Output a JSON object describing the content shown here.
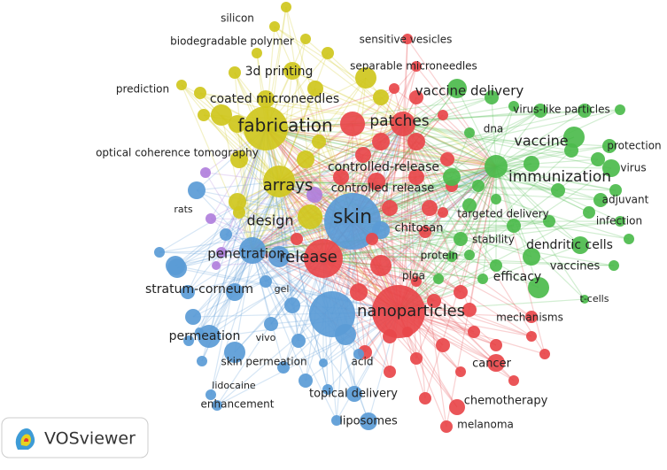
{
  "nodes": [
    {
      "label": "silicon"
    },
    {
      "label": "biodegradable polymer"
    },
    {
      "label": "3d printing"
    },
    {
      "label": "prediction"
    },
    {
      "label": "coated microneedles"
    },
    {
      "label": "fabrication"
    },
    {
      "label": "optical coherence tomography"
    },
    {
      "label": "arrays"
    },
    {
      "label": "design"
    },
    {
      "label": "rats"
    },
    {
      "label": "penetration"
    },
    {
      "label": "stratum-corneum"
    },
    {
      "label": "gel"
    },
    {
      "label": "permeation"
    },
    {
      "label": "vivo"
    },
    {
      "label": "skin permeation"
    },
    {
      "label": "lidocaine"
    },
    {
      "label": "enhancement"
    },
    {
      "label": "topical delivery"
    },
    {
      "label": "liposomes"
    },
    {
      "label": "skin"
    },
    {
      "label": "release"
    },
    {
      "label": "nanoparticles"
    },
    {
      "label": "sensitive vesicles"
    },
    {
      "label": "separable microneedles"
    },
    {
      "label": "patches"
    },
    {
      "label": "controlled-release"
    },
    {
      "label": "controlled release"
    },
    {
      "label": "chitosan"
    },
    {
      "label": "protein"
    },
    {
      "label": "plga"
    },
    {
      "label": "mechanisms"
    },
    {
      "label": "acid"
    },
    {
      "label": "cancer"
    },
    {
      "label": "chemotherapy"
    },
    {
      "label": "melanoma"
    },
    {
      "label": "vaccine delivery"
    },
    {
      "label": "virus-like particles"
    },
    {
      "label": "dna"
    },
    {
      "label": "vaccine"
    },
    {
      "label": "protection"
    },
    {
      "label": "virus"
    },
    {
      "label": "immunization"
    },
    {
      "label": "adjuvant"
    },
    {
      "label": "targeted delivery"
    },
    {
      "label": "infection"
    },
    {
      "label": "stability"
    },
    {
      "label": "dendritic cells"
    },
    {
      "label": "vaccines"
    },
    {
      "label": "efficacy"
    },
    {
      "label": "t-cells"
    }
  ],
  "logo": "VOSviewer"
}
